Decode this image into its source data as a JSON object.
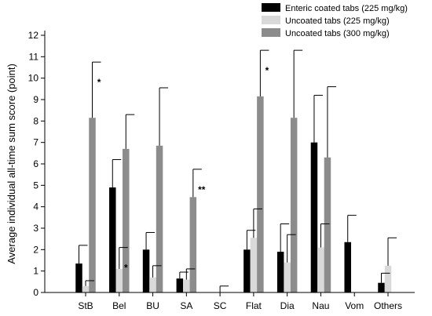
{
  "chart_data": {
    "type": "bar",
    "title": "",
    "xlabel": "",
    "ylabel": "Average individual all-time sum score (point)",
    "ylim": [
      0,
      12
    ],
    "yticks": [
      0,
      1,
      2,
      3,
      4,
      5,
      6,
      7,
      8,
      9,
      10,
      11,
      12
    ],
    "categories": [
      "StB",
      "Bel",
      "BU",
      "SA",
      "SC",
      "Flat",
      "Dia",
      "Nau",
      "Vom",
      "Others"
    ],
    "series": [
      {
        "name": "Enteric coated tabs (225 mg/kg)",
        "color": "#000000",
        "values": [
          1.35,
          4.9,
          2.0,
          0.65,
          0.0,
          2.0,
          1.9,
          7.0,
          2.35,
          0.45
        ],
        "errors": [
          0.85,
          1.3,
          0.8,
          0.3,
          0.0,
          0.9,
          1.3,
          2.2,
          1.25,
          0.45
        ]
      },
      {
        "name": "Uncoated tabs (225 mg/kg)",
        "color": "#d9d9d9",
        "values": [
          0.3,
          1.1,
          0.7,
          0.6,
          0.0,
          2.55,
          1.4,
          2.1,
          0.0,
          1.25
        ],
        "errors": [
          0.25,
          1.0,
          0.55,
          0.5,
          0.3,
          1.35,
          1.3,
          1.1,
          0.0,
          1.3
        ]
      },
      {
        "name": "Uncoated tabs (300 mg/kg)",
        "color": "#8c8c8c",
        "values": [
          8.15,
          6.7,
          6.85,
          4.45,
          0.0,
          9.15,
          8.15,
          6.3,
          0.0,
          0.0
        ],
        "errors": [
          2.6,
          1.6,
          2.7,
          1.3,
          0.0,
          2.15,
          3.15,
          3.3,
          0.0,
          0.0
        ]
      }
    ],
    "annotations": [
      {
        "text": "*",
        "category": "StB",
        "series": 2
      },
      {
        "text": "*",
        "category": "Bel",
        "series": 1
      },
      {
        "text": "**",
        "category": "SA",
        "series": 2
      },
      {
        "text": "*",
        "category": "Flat",
        "series": 2
      }
    ],
    "legend": "top-right",
    "grid": false
  }
}
